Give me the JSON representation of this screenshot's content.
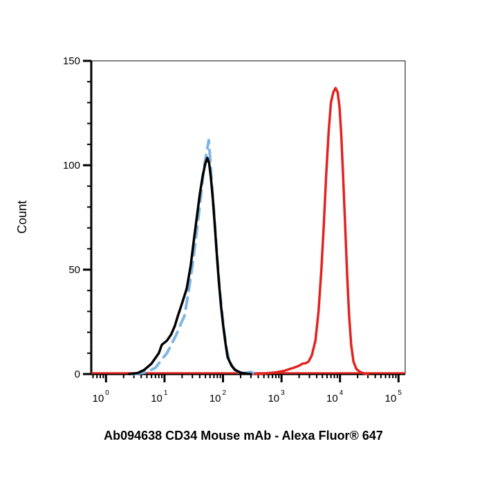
{
  "chart_data": {
    "type": "line",
    "xscale": "log",
    "xlim": [
      0.56,
      130000
    ],
    "ylim": [
      0,
      150
    ],
    "xlabel": "Ab094638 CD34 Mouse mAb - Alexa Fluor® 647",
    "ylabel": "Count",
    "x_ticks": [
      {
        "base": "10",
        "exp": "0",
        "value": 1
      },
      {
        "base": "10",
        "exp": "1",
        "value": 10
      },
      {
        "base": "10",
        "exp": "2",
        "value": 100
      },
      {
        "base": "10",
        "exp": "3",
        "value": 1000
      },
      {
        "base": "10",
        "exp": "4",
        "value": 10000
      },
      {
        "base": "10",
        "exp": "5",
        "value": 100000
      }
    ],
    "y_ticks": [
      {
        "label": "0",
        "value": 0
      },
      {
        "label": "50",
        "value": 50
      },
      {
        "label": "100",
        "value": 100
      },
      {
        "label": "150",
        "value": 150
      }
    ],
    "grid": false,
    "legend": "none",
    "series": [
      {
        "color": "#000000",
        "style": "solid",
        "points": [
          [
            2.5,
            0
          ],
          [
            3.5,
            0.5
          ],
          [
            4.5,
            2
          ],
          [
            6,
            5
          ],
          [
            8,
            10
          ],
          [
            9,
            14
          ],
          [
            11,
            16
          ],
          [
            13,
            19
          ],
          [
            15,
            23
          ],
          [
            17,
            28
          ],
          [
            20,
            34
          ],
          [
            24,
            41
          ],
          [
            28,
            52
          ],
          [
            32,
            65
          ],
          [
            36,
            76
          ],
          [
            40,
            86
          ],
          [
            45,
            95
          ],
          [
            50,
            101
          ],
          [
            54,
            103.5
          ],
          [
            58,
            101
          ],
          [
            62,
            94
          ],
          [
            67,
            84
          ],
          [
            72,
            72
          ],
          [
            78,
            58
          ],
          [
            85,
            44
          ],
          [
            92,
            33
          ],
          [
            100,
            24
          ],
          [
            110,
            15
          ],
          [
            120,
            8
          ],
          [
            140,
            4
          ],
          [
            160,
            2
          ],
          [
            200,
            0.7
          ],
          [
            250,
            0.2
          ],
          [
            300,
            0
          ]
        ]
      },
      {
        "color": "#7fb5e3",
        "style": "dashed",
        "points": [
          [
            3,
            0
          ],
          [
            4,
            0.5
          ],
          [
            5,
            1
          ],
          [
            7,
            3
          ],
          [
            9,
            7
          ],
          [
            11,
            10
          ],
          [
            13,
            14
          ],
          [
            16,
            19
          ],
          [
            19,
            24
          ],
          [
            22,
            28
          ],
          [
            26,
            40
          ],
          [
            30,
            52
          ],
          [
            34,
            64
          ],
          [
            38,
            75
          ],
          [
            42,
            86
          ],
          [
            46,
            96
          ],
          [
            50,
            103
          ],
          [
            54,
            108
          ],
          [
            57,
            112
          ],
          [
            60,
            104
          ],
          [
            64,
            92
          ],
          [
            69,
            80
          ],
          [
            74,
            68
          ],
          [
            80,
            55
          ],
          [
            87,
            42
          ],
          [
            95,
            31
          ],
          [
            105,
            20
          ],
          [
            115,
            12
          ],
          [
            130,
            6
          ],
          [
            150,
            3
          ],
          [
            180,
            1
          ],
          [
            230,
            0.5
          ],
          [
            300,
            1
          ],
          [
            350,
            0
          ]
        ]
      },
      {
        "color": "#e3221f",
        "style": "solid",
        "points": [
          [
            350,
            0
          ],
          [
            500,
            0.3
          ],
          [
            800,
            0.8
          ],
          [
            1100,
            1.5
          ],
          [
            1400,
            2.5
          ],
          [
            1700,
            3.2
          ],
          [
            2000,
            4
          ],
          [
            2300,
            5
          ],
          [
            2600,
            5.2
          ],
          [
            2900,
            6
          ],
          [
            3300,
            9
          ],
          [
            3800,
            16
          ],
          [
            4300,
            30
          ],
          [
            4800,
            50
          ],
          [
            5300,
            72
          ],
          [
            5800,
            95
          ],
          [
            6400,
            116
          ],
          [
            7000,
            130
          ],
          [
            7700,
            135
          ],
          [
            8400,
            137
          ],
          [
            9100,
            135
          ],
          [
            9800,
            128
          ],
          [
            10500,
            115
          ],
          [
            11300,
            95
          ],
          [
            12200,
            72
          ],
          [
            13200,
            48
          ],
          [
            14300,
            28
          ],
          [
            15500,
            14
          ],
          [
            17000,
            6
          ],
          [
            19000,
            2.5
          ],
          [
            22000,
            1
          ],
          [
            26000,
            0.3
          ],
          [
            30000,
            0
          ]
        ]
      }
    ]
  }
}
